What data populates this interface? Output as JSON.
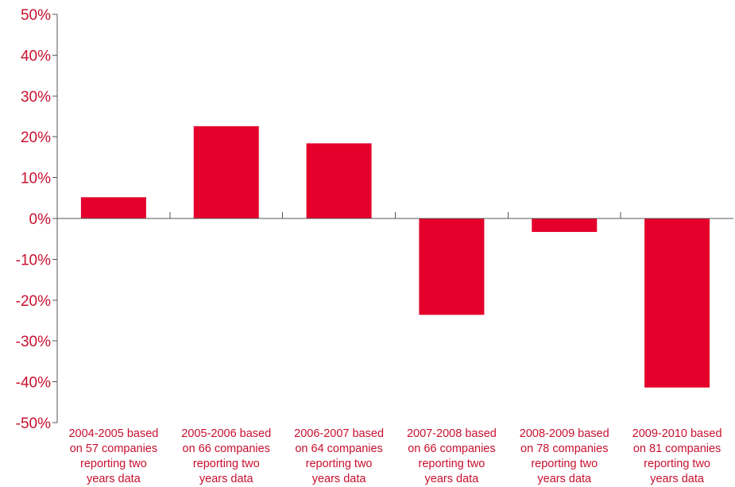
{
  "chart_data": {
    "type": "bar",
    "title": "",
    "xlabel": "",
    "ylabel": "",
    "ylim": [
      -50,
      50
    ],
    "y_ticks": [
      50,
      40,
      30,
      20,
      10,
      0,
      -10,
      -20,
      -30,
      -40,
      -50
    ],
    "y_tick_labels": [
      "50%",
      "40%",
      "30%",
      "20%",
      "10%",
      "0%",
      "-10%",
      "-20%",
      "-30%",
      "-40%",
      "-50%"
    ],
    "categories": [
      [
        "2004-2005 based",
        "on 57 companies",
        "reporting two",
        "years data"
      ],
      [
        "2005-2006 based",
        "on 66 companies",
        "reporting two",
        "years data"
      ],
      [
        "2006-2007 based",
        "on 64 companies",
        "reporting two",
        "years data"
      ],
      [
        "2007-2008 based",
        "on 66 companies",
        "reporting two",
        "years data"
      ],
      [
        "2008-2009 based",
        "on 78 companies",
        "reporting two",
        "years data"
      ],
      [
        "2009-2010 based",
        "on 81 companies",
        "reporting two",
        "years data"
      ]
    ],
    "values": [
      5.2,
      22.6,
      18.4,
      -23.6,
      -3.3,
      -41.4
    ],
    "bar_color": "#e4002b",
    "text_color": "#c8102e",
    "axis_color": "#555555",
    "grid": false,
    "legend": "none"
  }
}
